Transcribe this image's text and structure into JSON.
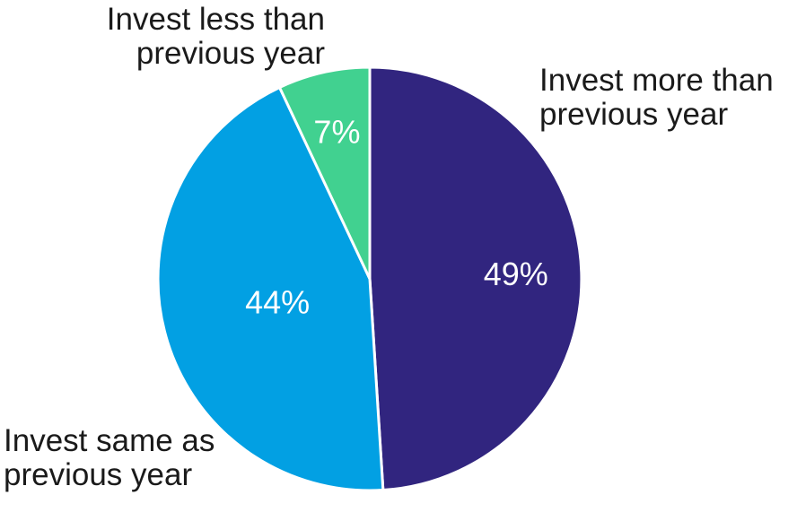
{
  "chart_data": {
    "type": "pie",
    "slices": [
      {
        "label": "Invest more than previous year",
        "label_lines": [
          "Invest more than",
          "previous year"
        ],
        "value": 49,
        "value_label": "49%",
        "color": "#31257f"
      },
      {
        "label": "Invest same as previous year",
        "label_lines": [
          "Invest same as",
          "previous year"
        ],
        "value": 44,
        "value_label": "44%",
        "color": "#02a0e3"
      },
      {
        "label": "Invest less than previous year",
        "label_lines": [
          "Invest less than",
          "previous year"
        ],
        "value": 7,
        "value_label": "7%",
        "color": "#41d190"
      }
    ],
    "start": "12 o'clock",
    "direction": "clockwise",
    "slice_border_color": "#ffffff"
  }
}
